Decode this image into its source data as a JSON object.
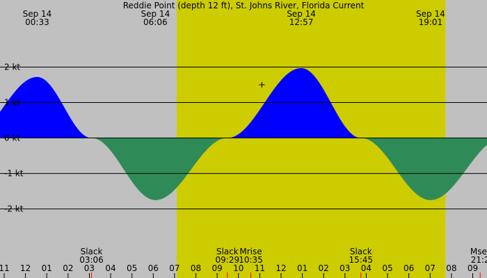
{
  "colors": {
    "night": "#c0c0c0",
    "day": "#cccc00",
    "flood": "#0000ff",
    "ebb": "#2e8b57",
    "gridline": "#000000",
    "tick_event": "#ff0000"
  },
  "chart_data": {
    "type": "area",
    "title": "Reddie Point (depth 12 ft), St. Johns River, Florida Current",
    "time_axis_start_hour": 11,
    "time_axis_end_hour": 33.67,
    "ylim": [
      -3.3,
      3.4
    ],
    "y_ticks": [
      {
        "value": 2,
        "label": "2 kt"
      },
      {
        "value": 1,
        "label": "1 kt"
      },
      {
        "value": 0,
        "label": "0 kt"
      },
      {
        "value": -1,
        "label": "-1 kt"
      },
      {
        "value": -2,
        "label": "-2 kt"
      }
    ],
    "hour_ticks": [
      {
        "hour": 11,
        "label": "11"
      },
      {
        "hour": 12,
        "label": "12"
      },
      {
        "hour": 13,
        "label": "01"
      },
      {
        "hour": 14,
        "label": "02"
      },
      {
        "hour": 15,
        "label": "03"
      },
      {
        "hour": 16,
        "label": "04"
      },
      {
        "hour": 17,
        "label": "05"
      },
      {
        "hour": 18,
        "label": "06"
      },
      {
        "hour": 19,
        "label": "07"
      },
      {
        "hour": 20,
        "label": "08"
      },
      {
        "hour": 21,
        "label": "09"
      },
      {
        "hour": 22,
        "label": "10"
      },
      {
        "hour": 23,
        "label": "11"
      },
      {
        "hour": 24,
        "label": "12"
      },
      {
        "hour": 25,
        "label": "01"
      },
      {
        "hour": 26,
        "label": "02"
      },
      {
        "hour": 27,
        "label": "03"
      },
      {
        "hour": 28,
        "label": "04"
      },
      {
        "hour": 29,
        "label": "05"
      },
      {
        "hour": 30,
        "label": "06"
      },
      {
        "hour": 31,
        "label": "07"
      },
      {
        "hour": 32,
        "label": "08"
      },
      {
        "hour": 33,
        "label": "09"
      }
    ],
    "daylight": {
      "start_hour": 19.1,
      "end_hour": 31.72
    },
    "extremes": [
      {
        "hour": 12.55,
        "value": 1.72,
        "date": "Sep 14",
        "time": "00:33"
      },
      {
        "hour": 18.1,
        "value": -1.75,
        "date": "Sep 14",
        "time": "06:06"
      },
      {
        "hour": 24.95,
        "value": 1.97,
        "date": "Sep 14",
        "time": "12:57"
      },
      {
        "hour": 31.02,
        "value": -1.75,
        "date": "Sep 14",
        "time": "19:01"
      }
    ],
    "curve_anchors": [
      {
        "hour": 9.35,
        "value": 0
      },
      {
        "hour": 12.55,
        "value": 1.72
      },
      {
        "hour": 15.1,
        "value": 0
      },
      {
        "hour": 18.1,
        "value": -1.75
      },
      {
        "hour": 21.48,
        "value": 0
      },
      {
        "hour": 24.95,
        "value": 1.97
      },
      {
        "hour": 27.75,
        "value": 0
      },
      {
        "hour": 31.02,
        "value": -1.75
      },
      {
        "hour": 34.4,
        "value": 0
      }
    ],
    "events": [
      {
        "hour": 15.1,
        "name": "Slack",
        "time": "03:06"
      },
      {
        "hour": 21.48,
        "name": "Slack",
        "time": "09:29"
      },
      {
        "hour": 22.58,
        "name": "Mrise",
        "time": "10:35"
      },
      {
        "hour": 27.75,
        "name": "Slack",
        "time": "15:45"
      },
      {
        "hour": 33.35,
        "name": "Mset",
        "time": "21:2"
      }
    ],
    "marker": {
      "hour": 23.1,
      "value": 1.5
    }
  }
}
